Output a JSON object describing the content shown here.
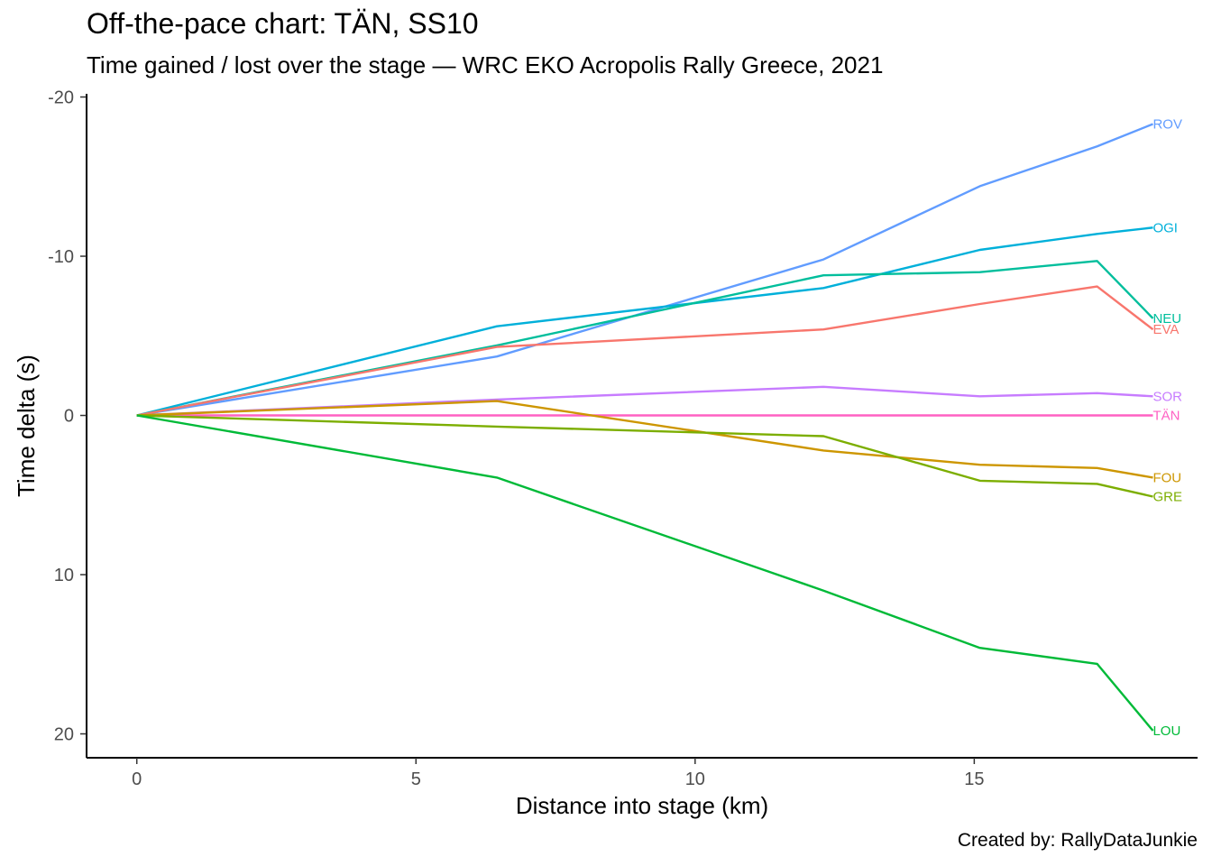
{
  "title": "Off-the-pace chart: TÄN, SS10",
  "subtitle": "Time gained / lost over the stage — WRC EKO Acropolis Rally Greece, 2021",
  "caption": "Created by: RallyDataJunkie",
  "chart_data": {
    "type": "line",
    "title": "Off-the-pace chart: TÄN, SS10",
    "subtitle": "Time gained / lost over the stage — WRC EKO Acropolis Rally Greece, 2021",
    "xlabel": "Distance into stage (km)",
    "ylabel": "Time delta (s)",
    "xlim": [
      -0.9,
      19.0
    ],
    "ylim": [
      -20.2,
      21.5
    ],
    "y_reversed": true,
    "x_ticks": [
      0,
      5,
      10,
      15
    ],
    "y_ticks": [
      -20,
      -10,
      0,
      10,
      20
    ],
    "grid": false,
    "legend": "direct labels at line ends",
    "x": [
      0,
      6.45,
      12.3,
      15.1,
      17.2,
      18.2
    ],
    "series": [
      {
        "name": "ROV",
        "color": "#619CFF",
        "values": [
          0,
          -3.7,
          -9.8,
          -14.4,
          -16.9,
          -18.3
        ]
      },
      {
        "name": "OGI",
        "color": "#00B0DA",
        "values": [
          0,
          -5.6,
          -8.0,
          -10.4,
          -11.4,
          -11.8
        ]
      },
      {
        "name": "NEU",
        "color": "#00BE9C",
        "values": [
          0,
          -4.4,
          -8.8,
          -9.0,
          -9.7,
          -6.1
        ]
      },
      {
        "name": "EVA",
        "color": "#F8766D",
        "values": [
          0,
          -4.3,
          -5.4,
          -7.0,
          -8.1,
          -5.4
        ]
      },
      {
        "name": "SOR",
        "color": "#C77CFF",
        "values": [
          0,
          -1.0,
          -1.8,
          -1.2,
          -1.4,
          -1.2
        ]
      },
      {
        "name": "TÄN",
        "color": "#FF61C3",
        "values": [
          0,
          0,
          0,
          0,
          0,
          0
        ]
      },
      {
        "name": "FOU",
        "color": "#CD9600",
        "values": [
          0,
          -0.9,
          2.2,
          3.1,
          3.3,
          3.9
        ]
      },
      {
        "name": "GRE",
        "color": "#7CAE00",
        "values": [
          0,
          0.7,
          1.3,
          4.1,
          4.3,
          5.1
        ]
      },
      {
        "name": "LOU",
        "color": "#00BA38",
        "values": [
          0,
          3.9,
          11.0,
          14.6,
          15.6,
          19.8
        ]
      }
    ]
  }
}
